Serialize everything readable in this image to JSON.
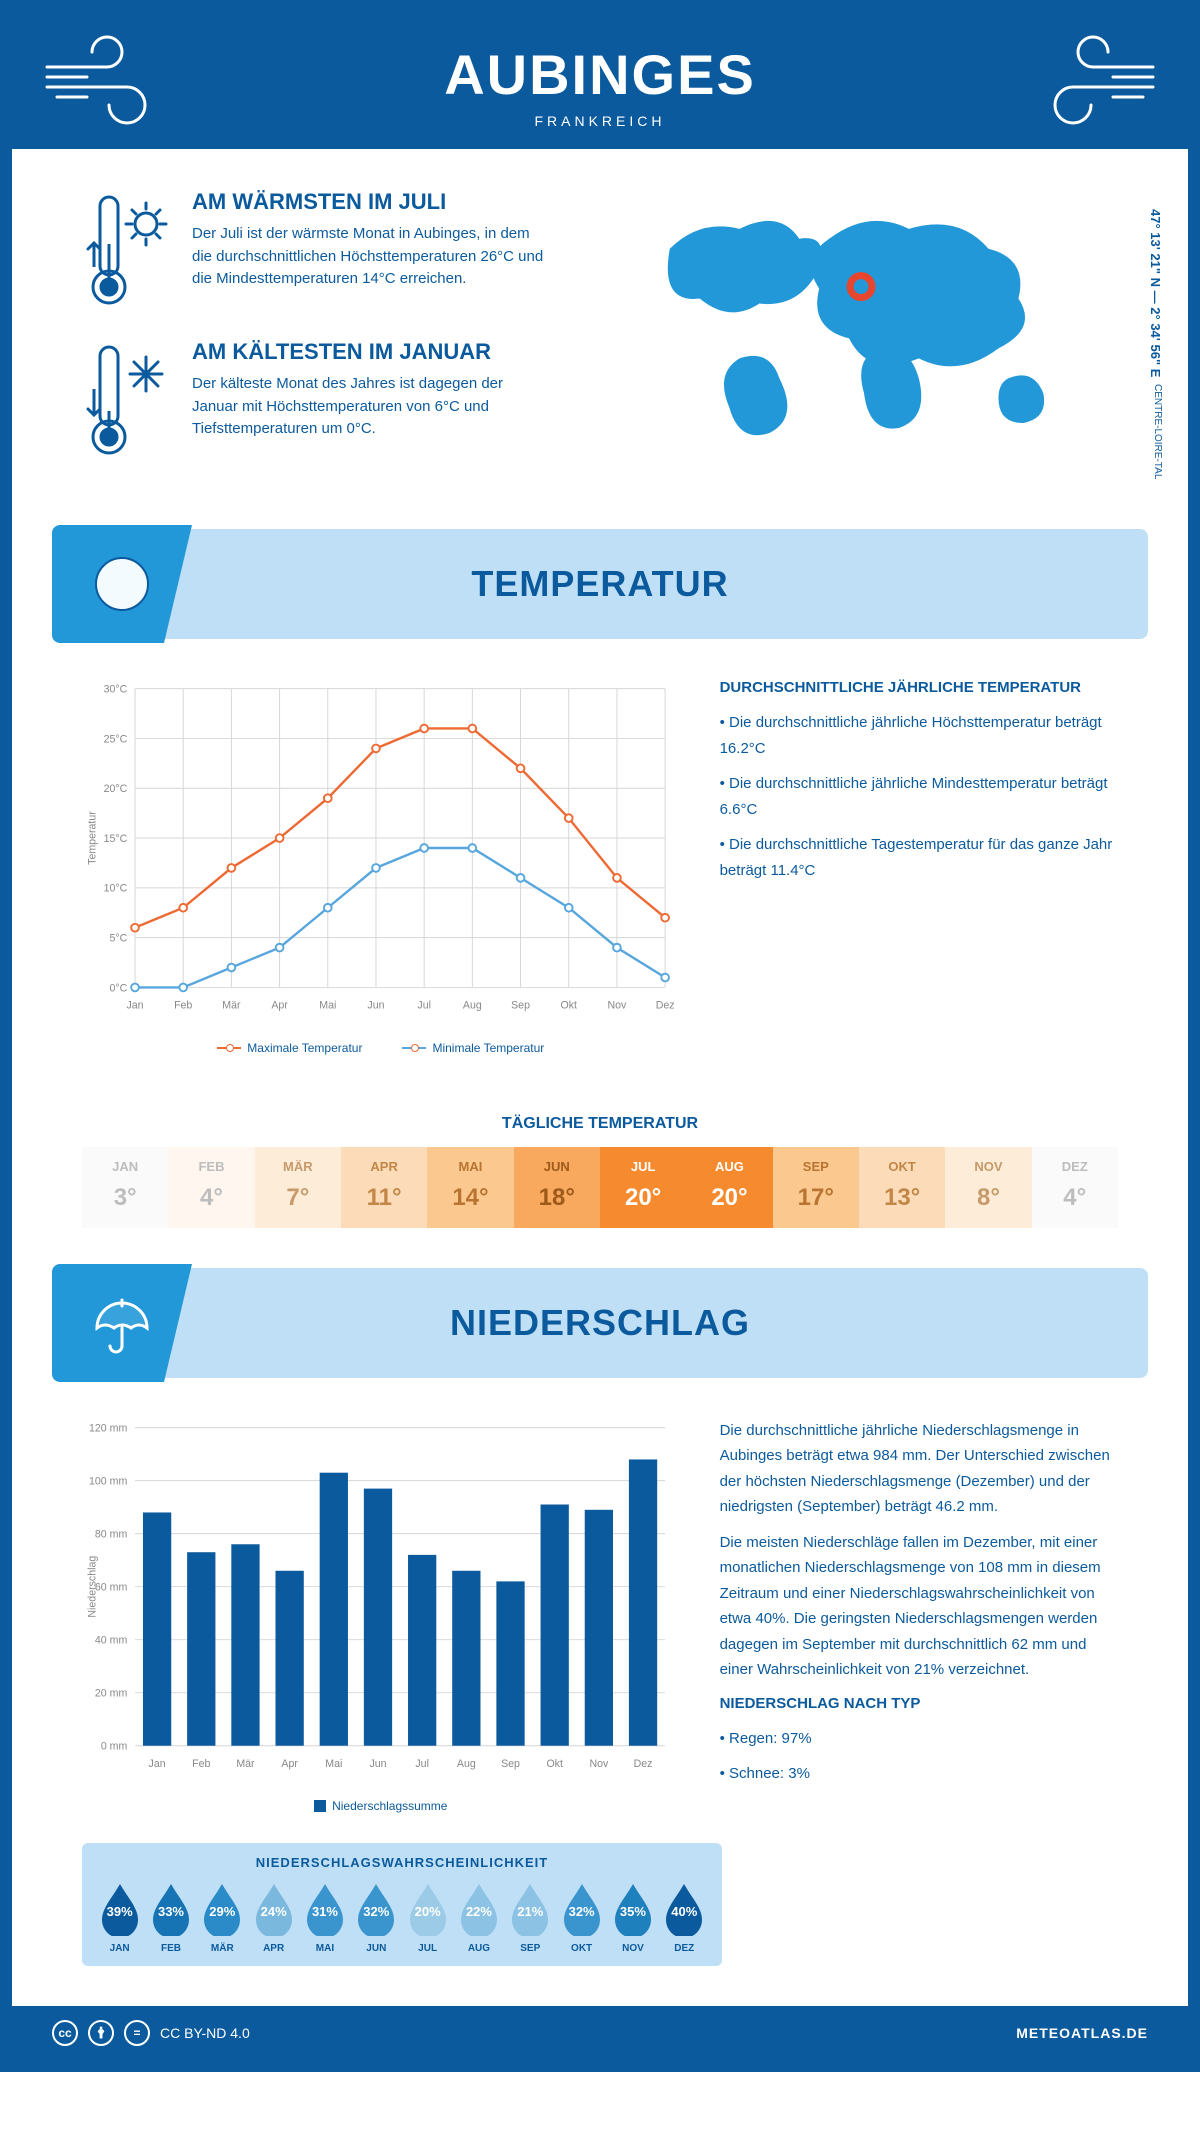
{
  "colors": {
    "brand": "#0b5a9d",
    "lightblue": "#bedff5",
    "midblue": "#2298d8",
    "orange": "#ed7432",
    "line_max": "#ed6a34",
    "line_min": "#57a6dd",
    "grid": "#d6d6d6",
    "axis_text": "#888"
  },
  "header": {
    "title": "AUBINGES",
    "subtitle": "FRANKREICH"
  },
  "coords": "47° 13' 21\" N — 2° 34' 56\" E",
  "region": "CENTRE-LOIRE-TAL",
  "fact_warm": {
    "title": "AM WÄRMSTEN IM JULI",
    "text": "Der Juli ist der wärmste Monat in Aubinges, in dem die durchschnittlichen Höchsttemperaturen 26°C und die Mindesttemperaturen 14°C erreichen."
  },
  "fact_cold": {
    "title": "AM KÄLTESTEN IM JANUAR",
    "text": "Der kälteste Monat des Jahres ist dagegen der Januar mit Höchsttemperaturen von 6°C und Tiefsttemperaturen um 0°C."
  },
  "section_temp": "TEMPERATUR",
  "section_precip": "NIEDERSCHLAG",
  "temp_chart": {
    "type": "line",
    "ylabel": "Temperatur",
    "ylim": [
      0,
      30
    ],
    "ytick_step": 5,
    "months": [
      "Jan",
      "Feb",
      "Mär",
      "Apr",
      "Mai",
      "Jun",
      "Jul",
      "Aug",
      "Sep",
      "Okt",
      "Nov",
      "Dez"
    ],
    "max": [
      6,
      8,
      12,
      15,
      19,
      24,
      26,
      26,
      22,
      17,
      11,
      7
    ],
    "min": [
      0,
      0,
      2,
      4,
      8,
      12,
      14,
      14,
      11,
      8,
      4,
      1
    ],
    "legend_max": "Maximale Temperatur",
    "legend_min": "Minimale Temperatur"
  },
  "temp_side": {
    "heading": "DURCHSCHNITTLICHE JÄHRLICHE TEMPERATUR",
    "b1": "• Die durchschnittliche jährliche Höchsttemperatur beträgt 16.2°C",
    "b2": "• Die durchschnittliche jährliche Mindesttemperatur beträgt 6.6°C",
    "b3": "• Die durchschnittliche Tagestemperatur für das ganze Jahr beträgt 11.4°C"
  },
  "daily_title": "TÄGLICHE TEMPERATUR",
  "daily": {
    "months": [
      "JAN",
      "FEB",
      "MÄR",
      "APR",
      "MAI",
      "JUN",
      "JUL",
      "AUG",
      "SEP",
      "OKT",
      "NOV",
      "DEZ"
    ],
    "vals": [
      "3°",
      "4°",
      "7°",
      "11°",
      "14°",
      "18°",
      "20°",
      "20°",
      "17°",
      "13°",
      "8°",
      "4°"
    ],
    "bg": [
      "#fafafa",
      "#fff7ef",
      "#fdecd8",
      "#fcdcb8",
      "#fbc88f",
      "#f9a95d",
      "#f58a2e",
      "#f58a2e",
      "#fbc88f",
      "#fcdcb8",
      "#fdecd8",
      "#fafafa"
    ],
    "fg": [
      "#bdbdbd",
      "#bdbdbd",
      "#c79a6a",
      "#c28647",
      "#b87430",
      "#9d5a1b",
      "#ffffff",
      "#ffffff",
      "#b87430",
      "#c28647",
      "#c79a6a",
      "#bdbdbd"
    ]
  },
  "precip_chart": {
    "type": "bar",
    "ylabel": "Niederschlag",
    "ylim": [
      0,
      120
    ],
    "ytick_step": 20,
    "months": [
      "Jan",
      "Feb",
      "Mär",
      "Apr",
      "Mai",
      "Jun",
      "Jul",
      "Aug",
      "Sep",
      "Okt",
      "Nov",
      "Dez"
    ],
    "values": [
      88,
      73,
      76,
      66,
      103,
      97,
      72,
      66,
      62,
      91,
      89,
      108
    ],
    "bar_color": "#0b5a9d",
    "legend": "Niederschlagssumme"
  },
  "precip_text": {
    "p1": "Die durchschnittliche jährliche Niederschlagsmenge in Aubinges beträgt etwa 984 mm. Der Unterschied zwischen der höchsten Niederschlagsmenge (Dezember) und der niedrigsten (September) beträgt 46.2 mm.",
    "p2": "Die meisten Niederschläge fallen im Dezember, mit einer monatlichen Niederschlagsmenge von 108 mm in diesem Zeitraum und einer Niederschlagswahrscheinlichkeit von etwa 40%. Die geringsten Niederschlagsmengen werden dagegen im September mit durchschnittlich 62 mm und einer Wahrscheinlichkeit von 21% verzeichnet.",
    "h": "NIEDERSCHLAG NACH TYP",
    "b1": "• Regen: 97%",
    "b2": "• Schnee: 3%"
  },
  "prob": {
    "title": "NIEDERSCHLAGSWAHRSCHEINLICHKEIT",
    "months": [
      "JAN",
      "FEB",
      "MÄR",
      "APR",
      "MAI",
      "JUN",
      "JUL",
      "AUG",
      "SEP",
      "OKT",
      "NOV",
      "DEZ"
    ],
    "pct": [
      "39%",
      "33%",
      "29%",
      "24%",
      "31%",
      "32%",
      "20%",
      "22%",
      "21%",
      "32%",
      "35%",
      "40%"
    ],
    "colors": [
      "#0b5a9d",
      "#1674b5",
      "#2a8bc8",
      "#7ab8de",
      "#3a94cd",
      "#3a94cd",
      "#9ccbe8",
      "#8cc2e3",
      "#8cc2e3",
      "#3a94cd",
      "#1f80be",
      "#0b5a9d"
    ]
  },
  "footer": {
    "license": "CC BY-ND 4.0",
    "site": "METEOATLAS.DE"
  }
}
